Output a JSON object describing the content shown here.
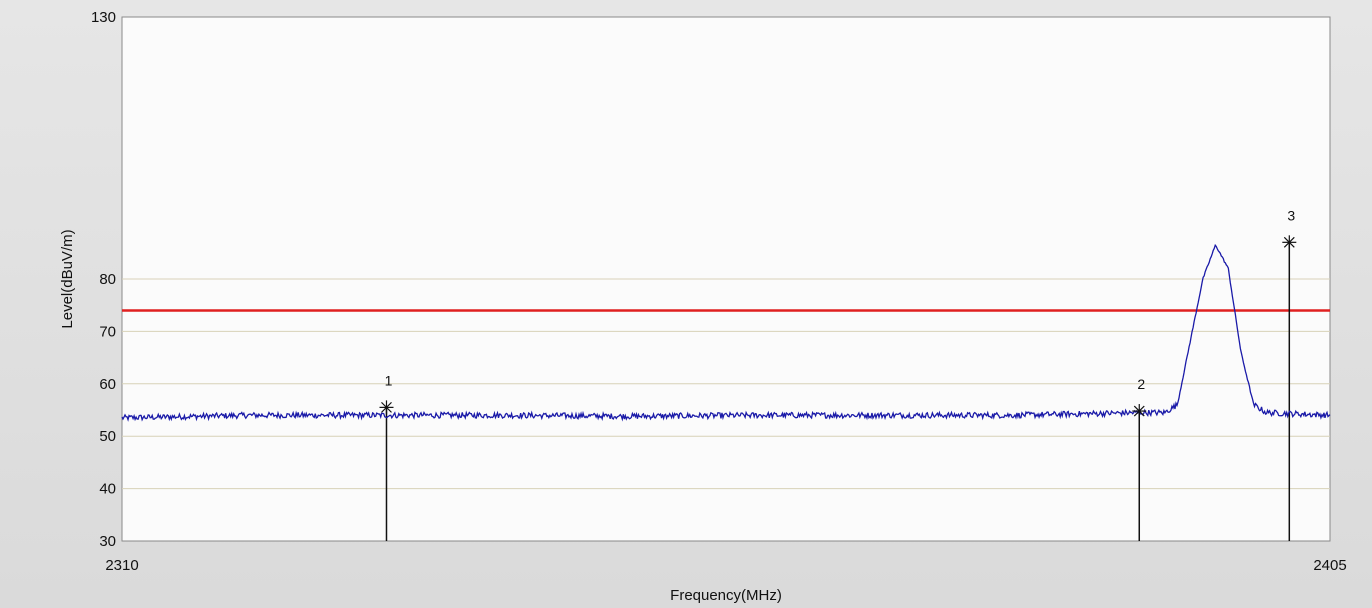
{
  "chart_data": {
    "type": "line",
    "xlabel": "Frequency(MHz)",
    "ylabel": "Level(dBuV/m)",
    "xlim": [
      2310,
      2405
    ],
    "ylim": [
      30,
      130
    ],
    "x_tick_labels": [
      "2310",
      "2405"
    ],
    "y_tick_labels": [
      "30",
      "40",
      "50",
      "60",
      "70",
      "80",
      "130"
    ],
    "y_gridlines": [
      40,
      50,
      60,
      70,
      80
    ],
    "grid": true,
    "limit_line": {
      "y": 74,
      "color": "#e02020"
    },
    "series": [
      {
        "color": "#1a1aa8",
        "points": [
          [
            2310,
            53.5
          ],
          [
            2320,
            54
          ],
          [
            2330,
            54
          ],
          [
            2340,
            54
          ],
          [
            2350,
            53.8
          ],
          [
            2360,
            54
          ],
          [
            2370,
            54
          ],
          [
            2380,
            54
          ],
          [
            2390,
            54.5
          ],
          [
            2392,
            54.5
          ],
          [
            2393,
            56
          ],
          [
            2394,
            68
          ],
          [
            2395,
            80
          ],
          [
            2396,
            86.5
          ],
          [
            2397,
            82
          ],
          [
            2398,
            66
          ],
          [
            2399,
            56
          ],
          [
            2400,
            54.5
          ],
          [
            2405,
            54
          ]
        ]
      }
    ],
    "markers": [
      {
        "label": "1",
        "x": 2330.8,
        "y": 55.5
      },
      {
        "label": "2",
        "x": 2390.0,
        "y": 54.8
      },
      {
        "label": "3",
        "x": 2401.8,
        "y": 87.0
      }
    ]
  }
}
